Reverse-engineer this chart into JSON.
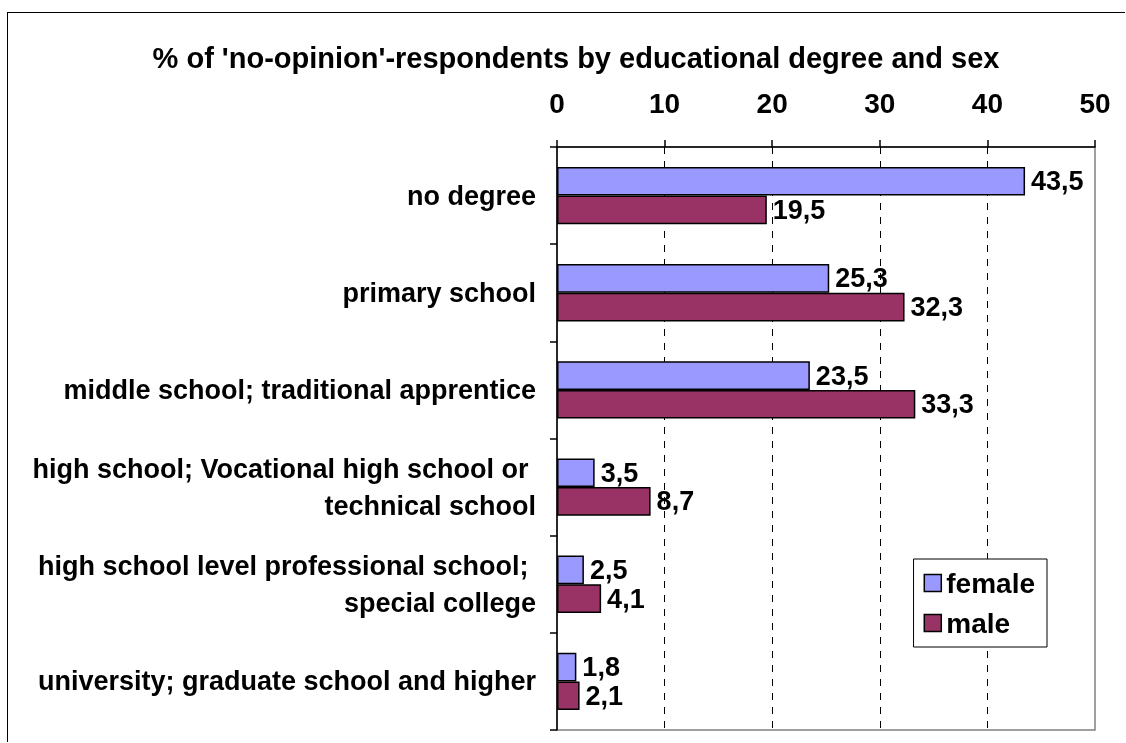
{
  "chart_data": {
    "type": "bar",
    "orientation": "horizontal",
    "title": "% of 'no-opinion'-respondents by educational degree and sex",
    "categories": [
      "no degree",
      "primary school",
      "middle school; traditional apprentice",
      "high school; Vocational high school or technical school",
      "high school level professional school; special college",
      "university; graduate school and higher"
    ],
    "series": [
      {
        "name": "female",
        "color": "#9999ff",
        "values": [
          43.5,
          25.3,
          23.5,
          3.5,
          2.5,
          1.8
        ],
        "value_labels": [
          "43,5",
          "25,3",
          "23,5",
          "3,5",
          "2,5",
          "1,8"
        ]
      },
      {
        "name": "male",
        "color": "#993366",
        "values": [
          19.5,
          32.3,
          33.3,
          8.7,
          4.1,
          2.1
        ],
        "value_labels": [
          "19,5",
          "32,3",
          "33,3",
          "8,7",
          "4,1",
          "2,1"
        ]
      }
    ],
    "xlim": [
      0,
      50
    ],
    "xticks": [
      0,
      10,
      20,
      30,
      40,
      50
    ],
    "grid": "x",
    "legend": "bottom right"
  }
}
